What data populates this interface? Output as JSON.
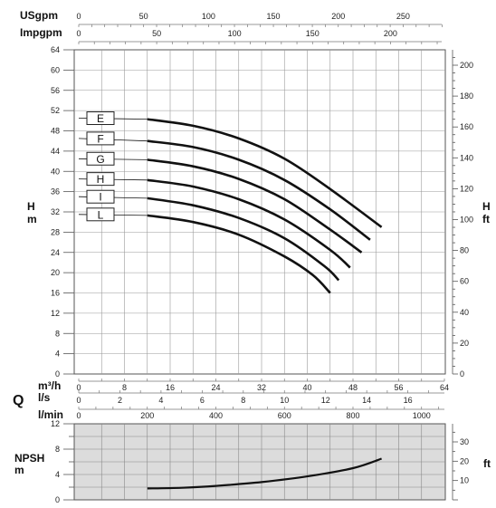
{
  "chart_data": [
    {
      "type": "line",
      "top_axes": [
        {
          "unit": "USgpm",
          "ticks": [
            0,
            50,
            100,
            150,
            200,
            250
          ]
        },
        {
          "unit": "Impgpm",
          "ticks": [
            0,
            50,
            100,
            150,
            200
          ]
        }
      ],
      "bottom_axes": [
        {
          "unit": "m³/h",
          "ticks": [
            0,
            8,
            16,
            24,
            32,
            40,
            48,
            56,
            64
          ]
        },
        {
          "unit": "l/s",
          "ticks": [
            0,
            2,
            4,
            6,
            8,
            10,
            12,
            14,
            16
          ]
        },
        {
          "unit": "l/min",
          "ticks": [
            0,
            200,
            400,
            600,
            800,
            1000
          ]
        }
      ],
      "q_label": "Q",
      "ylabel_left": "H\nm",
      "ylabel_right": "H\nft",
      "ylim": [
        0,
        64
      ],
      "xlim": [
        0,
        64
      ],
      "y_ticks": [
        0,
        4,
        8,
        12,
        16,
        20,
        24,
        28,
        32,
        36,
        40,
        44,
        48,
        52,
        56,
        60,
        64
      ],
      "y2_ticks": [
        0,
        20,
        40,
        60,
        80,
        100,
        120,
        140,
        160,
        180,
        200
      ],
      "grid": true,
      "series": [
        {
          "name": "E",
          "x": [
            0,
            12,
            20,
            28,
            36,
            44,
            53
          ],
          "y": [
            50.5,
            50.3,
            49,
            46.5,
            42.5,
            36.5,
            29
          ]
        },
        {
          "name": "F",
          "x": [
            0,
            12,
            20,
            28,
            36,
            44,
            51
          ],
          "y": [
            46.5,
            46,
            44.8,
            42.3,
            38.3,
            32.5,
            26.5
          ]
        },
        {
          "name": "G",
          "x": [
            0,
            12,
            20,
            28,
            36,
            44,
            49.5
          ],
          "y": [
            42.5,
            42.3,
            41,
            38.5,
            34.5,
            28.5,
            24
          ]
        },
        {
          "name": "H",
          "x": [
            0,
            12,
            20,
            28,
            36,
            44,
            47.5
          ],
          "y": [
            38.5,
            38.3,
            37,
            34.5,
            30.5,
            24.5,
            21
          ]
        },
        {
          "name": "I",
          "x": [
            0,
            12,
            20,
            28,
            36,
            43,
            45.5
          ],
          "y": [
            35,
            34.7,
            33.3,
            30.8,
            26.8,
            21.3,
            18.5
          ]
        },
        {
          "name": "L",
          "x": [
            0,
            12,
            20,
            28,
            36,
            41,
            44
          ],
          "y": [
            31.5,
            31.3,
            30,
            27.5,
            23.2,
            19.5,
            16
          ]
        }
      ]
    },
    {
      "type": "line",
      "ylabel_left": "NPSH\nm",
      "ylabel_right": "ft",
      "ylim": [
        0,
        12
      ],
      "y_ticks": [
        0,
        4,
        8,
        12
      ],
      "y2_ticks": [
        10,
        20,
        30
      ],
      "grid": true,
      "series": [
        {
          "x": [
            12,
            18,
            24,
            32,
            40,
            48,
            53
          ],
          "y": [
            1.8,
            1.9,
            2.2,
            2.8,
            3.7,
            5.0,
            6.5
          ]
        }
      ]
    }
  ]
}
